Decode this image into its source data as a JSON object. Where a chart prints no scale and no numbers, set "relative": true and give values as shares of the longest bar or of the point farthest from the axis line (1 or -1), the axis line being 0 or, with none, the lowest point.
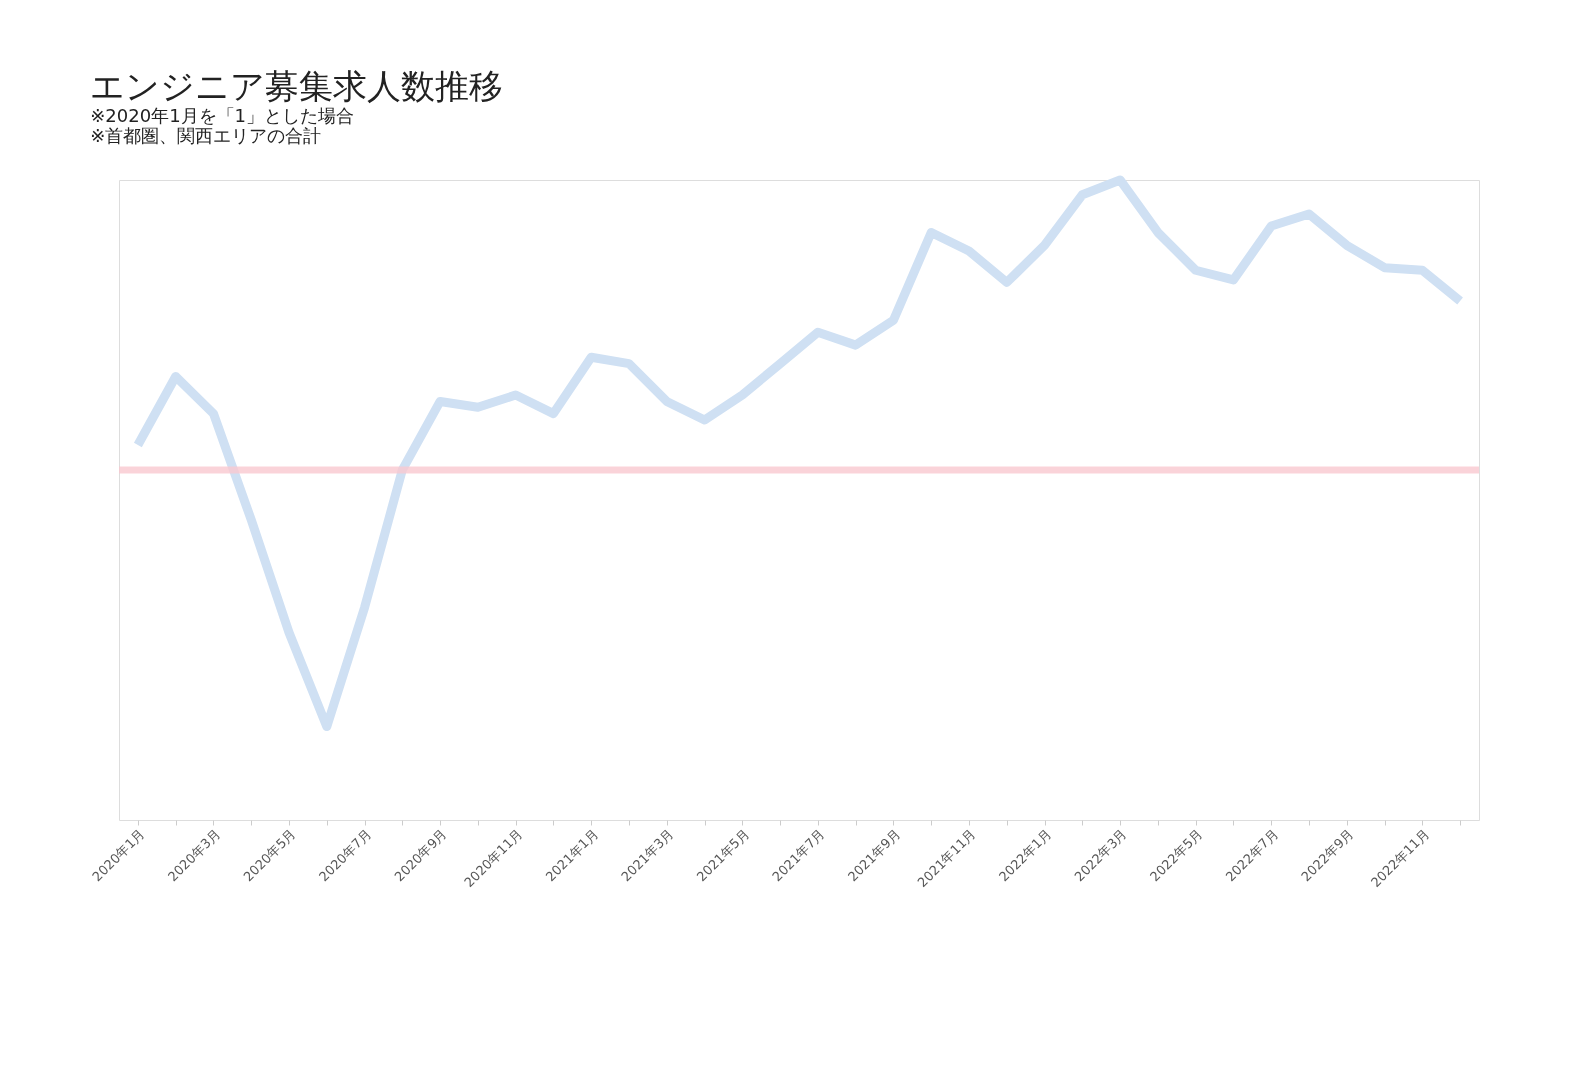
{
  "chart_data": {
    "type": "line",
    "title": "エンジニア募集求人数推移",
    "subtitle": [
      "※2020年1月を「1」とした場合",
      "※首都圏、関西エリアの合計"
    ],
    "relative": true,
    "categories": [
      "2020年1月",
      null,
      "2020年3月",
      null,
      "2020年5月",
      null,
      "2020年7月",
      null,
      "2020年9月",
      null,
      "2020年11月",
      null,
      "2021年1月",
      null,
      "2021年3月",
      null,
      "2021年5月",
      null,
      "2021年7月",
      null,
      "2021年9月",
      null,
      "2021年11月",
      null,
      "2022年1月",
      null,
      "2022年3月",
      null,
      "2022年5月",
      null,
      "2022年7月",
      null,
      "2022年9月",
      null,
      "2022年11月",
      null
    ],
    "series": [
      {
        "color": "#cfe0f3",
        "values": [
          0.586,
          0.693,
          0.635,
          0.469,
          0.293,
          0.146,
          0.332,
          0.547,
          0.654,
          0.645,
          0.664,
          0.635,
          0.723,
          0.713,
          0.654,
          0.625,
          0.664,
          0.713,
          0.762,
          0.742,
          0.781,
          0.918,
          0.889,
          0.84,
          0.898,
          0.977,
          1,
          0.918,
          0.859,
          0.844,
          0.928,
          0.947,
          0.898,
          0.863,
          0.859,
          0.811
        ]
      }
    ],
    "ref_lines": [
      {
        "axis": "y",
        "value": 0.547,
        "color": "#f9c8d0"
      }
    ],
    "marker": "none",
    "line_style": "solid"
  }
}
